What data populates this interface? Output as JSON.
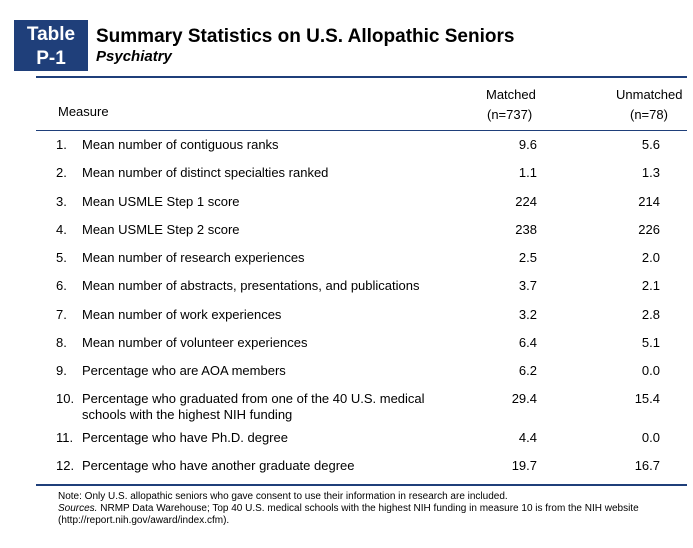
{
  "badge": {
    "line1": "Table",
    "line2": "P-1"
  },
  "title": "Summary Statistics on U.S. Allopathic Seniors",
  "subtitle": "Psychiatry",
  "headers": {
    "measure": "Measure",
    "matched": "Matched",
    "matched_n": "(n=737)",
    "unmatched": "Unmatched",
    "unmatched_n": "(n=78)"
  },
  "rows": [
    {
      "num": "1.",
      "measure": "Mean number of contiguous ranks",
      "matched": "9.6",
      "unmatched": "5.6"
    },
    {
      "num": "2.",
      "measure": "Mean number of distinct specialties ranked",
      "matched": "1.1",
      "unmatched": "1.3"
    },
    {
      "num": "3.",
      "measure": "Mean USMLE Step 1 score",
      "matched": "224",
      "unmatched": "214"
    },
    {
      "num": "4.",
      "measure": "Mean USMLE Step 2 score",
      "matched": "238",
      "unmatched": "226"
    },
    {
      "num": "5.",
      "measure": "Mean number of research experiences",
      "matched": "2.5",
      "unmatched": "2.0"
    },
    {
      "num": "6.",
      "measure": "Mean number of abstracts, presentations, and publications",
      "matched": "3.7",
      "unmatched": "2.1"
    },
    {
      "num": "7.",
      "measure": "Mean number of work experiences",
      "matched": "3.2",
      "unmatched": "2.8"
    },
    {
      "num": "8.",
      "measure": "Mean number of volunteer experiences",
      "matched": "6.4",
      "unmatched": "5.1"
    },
    {
      "num": "9.",
      "measure": "Percentage who are AOA members",
      "matched": "6.2",
      "unmatched": "0.0"
    },
    {
      "num": "10.",
      "measure": "Percentage who graduated from one of the 40 U.S. medical schools with the highest NIH funding",
      "matched": "29.4",
      "unmatched": "15.4"
    },
    {
      "num": "11.",
      "measure": "Percentage who have Ph.D. degree",
      "matched": "4.4",
      "unmatched": "0.0"
    },
    {
      "num": "12.",
      "measure": "Percentage who have another graduate degree",
      "matched": "19.7",
      "unmatched": "16.7"
    }
  ],
  "note": {
    "line1": "Note: Only U.S. allopathic seniors who gave consent to use their information in research are included.",
    "sources_label": "Sources.",
    "sources_text": " NRMP Data Warehouse; Top 40 U.S. medical schools with the highest NIH funding in measure 10 is from the NIH website (http://report.nih.gov/award/index.cfm)."
  }
}
